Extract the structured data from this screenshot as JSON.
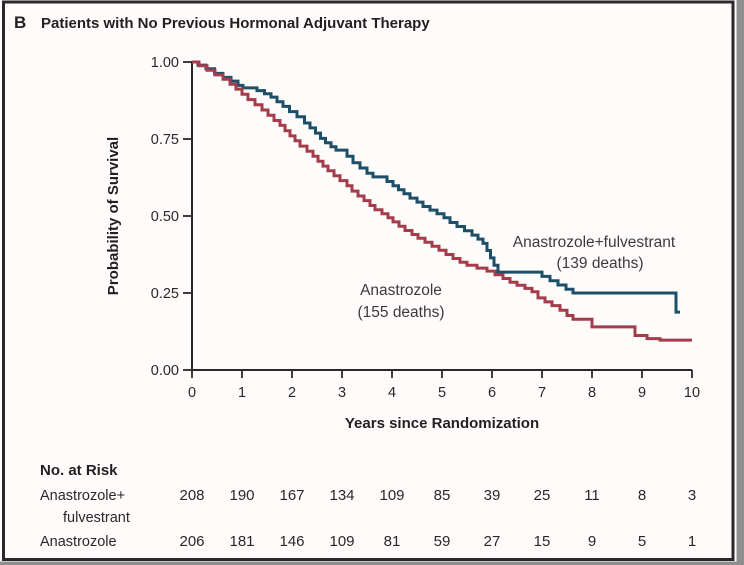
{
  "panel": {
    "letter": "B",
    "title": "Patients with No Previous Hormonal Adjuvant Therapy"
  },
  "chart_data": {
    "type": "line",
    "subtype": "kaplan-meier-step",
    "title": "Patients with No Previous Hormonal Adjuvant Therapy",
    "xlabel": "Years since Randomization",
    "ylabel": "Probability of Survival",
    "xlim": [
      0,
      10
    ],
    "ylim": [
      0.0,
      1.0
    ],
    "grid": false,
    "legend_position": "annotations-on-plot",
    "x_ticks": [
      0,
      1,
      2,
      3,
      4,
      5,
      6,
      7,
      8,
      9,
      10
    ],
    "y_ticks": [
      {
        "value": 1.0,
        "label": "1.00"
      },
      {
        "value": 0.75,
        "label": "0.75"
      },
      {
        "value": 0.5,
        "label": "0.50"
      },
      {
        "value": 0.25,
        "label": "0.25"
      },
      {
        "value": 0.0,
        "label": "0.00"
      }
    ],
    "series": [
      {
        "name": "Anastrozole+fulvestrant",
        "deaths": 139,
        "color": "#1d4f68",
        "annotation_line1": "Anastrozole+fulvestrant",
        "annotation_line2": "(139 deaths)",
        "points": [
          [
            0,
            1.0
          ],
          [
            0.12,
            0.99
          ],
          [
            0.28,
            0.978
          ],
          [
            0.45,
            0.963
          ],
          [
            0.62,
            0.95
          ],
          [
            0.78,
            0.938
          ],
          [
            0.92,
            0.924
          ],
          [
            1.02,
            0.916
          ],
          [
            1.3,
            0.907
          ],
          [
            1.45,
            0.897
          ],
          [
            1.58,
            0.886
          ],
          [
            1.7,
            0.871
          ],
          [
            1.82,
            0.856
          ],
          [
            1.95,
            0.839
          ],
          [
            2.1,
            0.822
          ],
          [
            2.25,
            0.802
          ],
          [
            2.36,
            0.786
          ],
          [
            2.47,
            0.769
          ],
          [
            2.57,
            0.752
          ],
          [
            2.67,
            0.738
          ],
          [
            2.78,
            0.725
          ],
          [
            2.88,
            0.714
          ],
          [
            3.1,
            0.694
          ],
          [
            3.22,
            0.673
          ],
          [
            3.36,
            0.656
          ],
          [
            3.5,
            0.639
          ],
          [
            3.62,
            0.627
          ],
          [
            3.9,
            0.612
          ],
          [
            4.02,
            0.598
          ],
          [
            4.13,
            0.585
          ],
          [
            4.24,
            0.572
          ],
          [
            4.36,
            0.558
          ],
          [
            4.5,
            0.545
          ],
          [
            4.62,
            0.531
          ],
          [
            4.76,
            0.519
          ],
          [
            4.9,
            0.507
          ],
          [
            5.04,
            0.494
          ],
          [
            5.16,
            0.479
          ],
          [
            5.3,
            0.466
          ],
          [
            5.45,
            0.452
          ],
          [
            5.6,
            0.438
          ],
          [
            5.72,
            0.425
          ],
          [
            5.82,
            0.411
          ],
          [
            5.9,
            0.388
          ],
          [
            5.97,
            0.364
          ],
          [
            6.04,
            0.34
          ],
          [
            6.12,
            0.318
          ],
          [
            7.0,
            0.304
          ],
          [
            7.16,
            0.29
          ],
          [
            7.32,
            0.276
          ],
          [
            7.48,
            0.262
          ],
          [
            7.62,
            0.25
          ],
          [
            9.68,
            0.25
          ],
          [
            9.68,
            0.188
          ],
          [
            9.76,
            0.188
          ]
        ]
      },
      {
        "name": "Anastrozole",
        "deaths": 155,
        "color": "#a53c4c",
        "annotation_line1": "Anastrozole",
        "annotation_line2": "(155 deaths)",
        "points": [
          [
            0,
            1.0
          ],
          [
            0.14,
            0.988
          ],
          [
            0.3,
            0.973
          ],
          [
            0.46,
            0.958
          ],
          [
            0.62,
            0.944
          ],
          [
            0.76,
            0.928
          ],
          [
            0.88,
            0.912
          ],
          [
            1.0,
            0.895
          ],
          [
            1.12,
            0.878
          ],
          [
            1.26,
            0.861
          ],
          [
            1.4,
            0.844
          ],
          [
            1.52,
            0.827
          ],
          [
            1.64,
            0.81
          ],
          [
            1.76,
            0.794
          ],
          [
            1.86,
            0.777
          ],
          [
            1.96,
            0.76
          ],
          [
            2.06,
            0.744
          ],
          [
            2.16,
            0.727
          ],
          [
            2.3,
            0.71
          ],
          [
            2.42,
            0.694
          ],
          [
            2.52,
            0.678
          ],
          [
            2.62,
            0.662
          ],
          [
            2.72,
            0.647
          ],
          [
            2.84,
            0.631
          ],
          [
            2.96,
            0.615
          ],
          [
            3.1,
            0.598
          ],
          [
            3.2,
            0.581
          ],
          [
            3.32,
            0.565
          ],
          [
            3.44,
            0.55
          ],
          [
            3.56,
            0.534
          ],
          [
            3.66,
            0.52
          ],
          [
            3.8,
            0.507
          ],
          [
            3.92,
            0.494
          ],
          [
            4.02,
            0.481
          ],
          [
            4.14,
            0.467
          ],
          [
            4.26,
            0.453
          ],
          [
            4.4,
            0.44
          ],
          [
            4.52,
            0.428
          ],
          [
            4.66,
            0.415
          ],
          [
            4.8,
            0.402
          ],
          [
            4.94,
            0.389
          ],
          [
            5.08,
            0.375
          ],
          [
            5.22,
            0.362
          ],
          [
            5.36,
            0.35
          ],
          [
            5.5,
            0.34
          ],
          [
            5.7,
            0.331
          ],
          [
            5.9,
            0.321
          ],
          [
            6.06,
            0.309
          ],
          [
            6.22,
            0.297
          ],
          [
            6.36,
            0.285
          ],
          [
            6.5,
            0.275
          ],
          [
            6.66,
            0.265
          ],
          [
            6.8,
            0.254
          ],
          [
            6.92,
            0.234
          ],
          [
            7.06,
            0.221
          ],
          [
            7.2,
            0.209
          ],
          [
            7.36,
            0.194
          ],
          [
            7.5,
            0.177
          ],
          [
            7.62,
            0.165
          ],
          [
            8.0,
            0.14
          ],
          [
            8.86,
            0.112
          ],
          [
            9.1,
            0.102
          ],
          [
            9.36,
            0.097
          ],
          [
            10.0,
            0.097
          ]
        ]
      }
    ]
  },
  "risk_table": {
    "header": "No. at Risk",
    "rows": [
      {
        "name": "Anastrozole+fulvestrant",
        "label_line1": "Anastrozole+",
        "label_line2": "fulvestrant",
        "values": [
          208,
          190,
          167,
          134,
          109,
          85,
          39,
          25,
          11,
          8,
          3
        ]
      },
      {
        "name": "Anastrozole",
        "label_line1": "Anastrozole",
        "label_line2": "",
        "values": [
          206,
          181,
          146,
          109,
          81,
          59,
          27,
          15,
          9,
          5,
          1
        ]
      }
    ]
  },
  "colors": {
    "series_fulvestrant": "#1d4f68",
    "series_anastrozole": "#a53c4c",
    "axis": "#2b2728",
    "panel_border": "#2c282a",
    "outer_gray": "#8f8f8f"
  }
}
